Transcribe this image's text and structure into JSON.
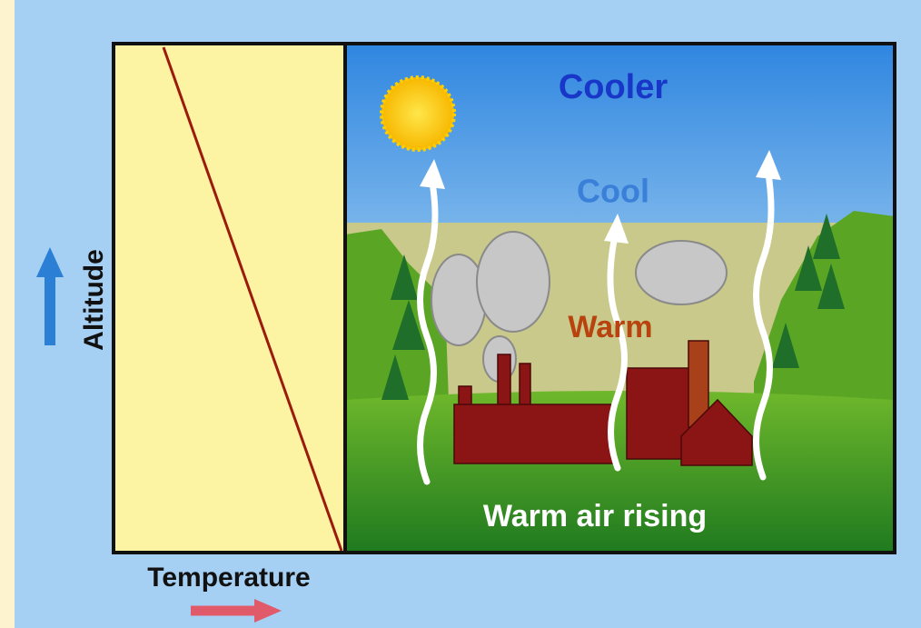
{
  "diagram": {
    "labels": {
      "top": "Cooler",
      "middle": "Cool",
      "lower": "Warm",
      "ground": "Warm air rising"
    },
    "axes": {
      "y": "Altitude",
      "x": "Temperature"
    }
  }
}
